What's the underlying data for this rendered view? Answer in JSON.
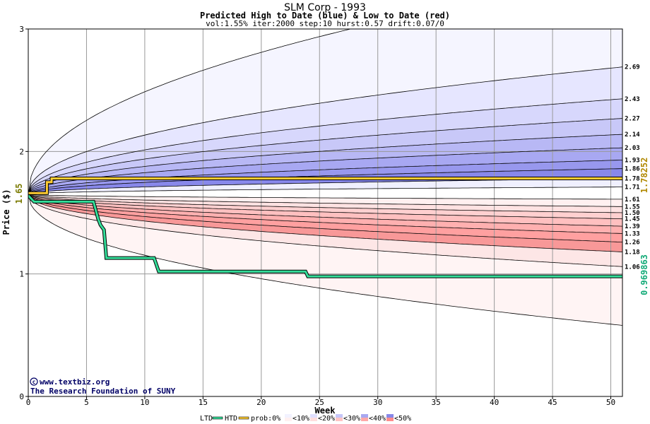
{
  "chart_data": {
    "type": "area",
    "title": "SLM Corp - 1993",
    "subtitle": "Predicted High to Date (blue) &  Low to Date (red)",
    "params": "vol:1.55% iter:2000 step:10 hurst:0.57 drift:0.07/0",
    "xlabel": "Week",
    "ylabel": "Price ($)",
    "xlim": [
      0,
      51
    ],
    "ylim": [
      0,
      3
    ],
    "x_ticks": [
      0,
      5,
      10,
      15,
      20,
      25,
      30,
      35,
      40,
      45,
      50
    ],
    "y_ticks": [
      0,
      1,
      2,
      3
    ],
    "grid": true,
    "start_price": 1.65,
    "start_label": "1.65",
    "high_to_date_label": "1.78252",
    "low_to_date_label": "0.969863",
    "end_values": [
      "2.69",
      "2.43",
      "2.27",
      "2.14",
      "2.03",
      "1.93",
      "1.86",
      "1.78",
      "1.71",
      "1.61",
      "1.55",
      "1.50",
      "1.45",
      "1.39",
      "1.33",
      "1.26",
      "1.18",
      "1.06"
    ],
    "upper_quantiles": [
      {
        "end": 3.45,
        "label": ""
      },
      {
        "end": 2.69,
        "label": "2.69"
      },
      {
        "end": 2.43,
        "label": "2.43"
      },
      {
        "end": 2.27,
        "label": "2.27"
      },
      {
        "end": 2.14,
        "label": "2.14"
      },
      {
        "end": 2.03,
        "label": "2.03"
      },
      {
        "end": 1.93,
        "label": "1.93"
      },
      {
        "end": 1.86,
        "label": "1.86"
      },
      {
        "end": 1.78,
        "label": "1.78"
      },
      {
        "end": 1.71,
        "label": "1.71"
      }
    ],
    "lower_quantiles": [
      {
        "end": 1.61,
        "label": "1.61"
      },
      {
        "end": 1.55,
        "label": "1.55"
      },
      {
        "end": 1.5,
        "label": "1.50"
      },
      {
        "end": 1.45,
        "label": "1.45"
      },
      {
        "end": 1.39,
        "label": "1.39"
      },
      {
        "end": 1.33,
        "label": "1.33"
      },
      {
        "end": 1.26,
        "label": "1.26"
      },
      {
        "end": 1.18,
        "label": "1.18"
      },
      {
        "end": 1.06,
        "label": "1.06"
      },
      {
        "end": 0.58,
        "label": ""
      }
    ],
    "band_colors_blue": [
      "#f5f5ff",
      "#e6e6ff",
      "#d7d7fc",
      "#c8c8f8",
      "#b8b8f5",
      "#a8a8f2",
      "#9898ee",
      "#8888ea",
      "#f0f0ff"
    ],
    "band_colors_red": [
      "#fff0f0",
      "#ffe2e2",
      "#ffd0d0",
      "#ffc0c0",
      "#ffb0b0",
      "#ffa0a0",
      "#f89898",
      "#fde6e6",
      "#fff4f4"
    ],
    "htd_series": {
      "name": "HTD",
      "color": "#ffcc33",
      "points": [
        [
          0,
          1.66
        ],
        [
          1.6,
          1.66
        ],
        [
          1.6,
          1.75
        ],
        [
          2.0,
          1.75
        ],
        [
          2.0,
          1.78
        ],
        [
          51,
          1.78
        ]
      ]
    },
    "ltd_series": {
      "name": "LTD",
      "color": "#33dd99",
      "points": [
        [
          0,
          1.64
        ],
        [
          0.5,
          1.59
        ],
        [
          5.6,
          1.59
        ],
        [
          6.0,
          1.45
        ],
        [
          6.2,
          1.4
        ],
        [
          6.5,
          1.36
        ],
        [
          6.7,
          1.13
        ],
        [
          10.8,
          1.13
        ],
        [
          11.2,
          1.02
        ],
        [
          23.8,
          1.02
        ],
        [
          24.0,
          0.98
        ],
        [
          51,
          0.98
        ]
      ]
    },
    "legend": {
      "placement": "bottom",
      "ltd_label": "LTD",
      "htd_label": "HTD",
      "prob_label": "prob:0%",
      "items": [
        {
          "label": "<10%",
          "blue": "#f2f2ff",
          "red": "#fff0f0"
        },
        {
          "label": "<20%",
          "blue": "#e0e0ff",
          "red": "#ffdede"
        },
        {
          "label": "<30%",
          "blue": "#c6c6f8",
          "red": "#ffc4c4"
        },
        {
          "label": "<40%",
          "blue": "#a8a8f0",
          "red": "#ffa8a8"
        },
        {
          "label": "<50%",
          "blue": "#8888e8",
          "red": "#ff8c8c"
        }
      ]
    },
    "watermark": "www.textbiz.org",
    "credit": "The Research Foundation of SUNY"
  }
}
